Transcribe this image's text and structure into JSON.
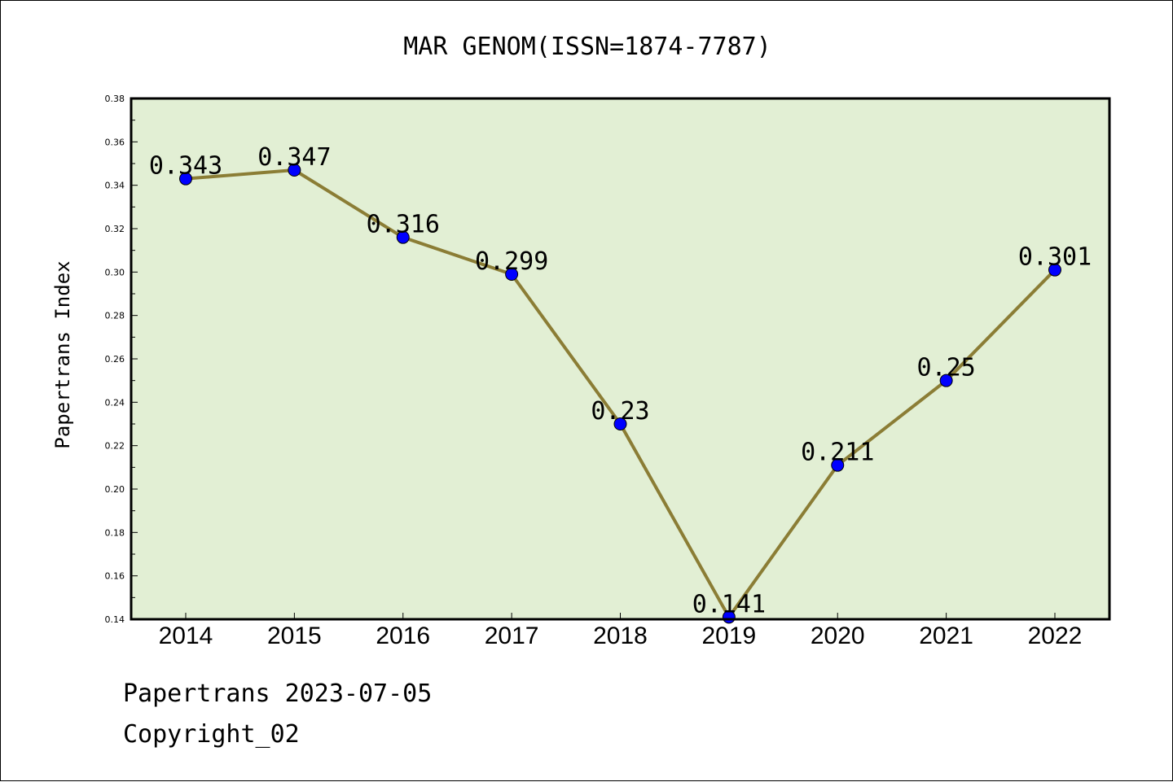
{
  "chart_data": {
    "type": "line",
    "title": "MAR GENOM(ISSN=1874-7787)",
    "xlabel": "",
    "ylabel": "Papertrans Index",
    "categories": [
      "2014",
      "2015",
      "2016",
      "2017",
      "2018",
      "2019",
      "2020",
      "2021",
      "2022"
    ],
    "series": [
      {
        "values": [
          0.343,
          0.347,
          0.316,
          0.299,
          0.23,
          0.141,
          0.211,
          0.25,
          0.301
        ],
        "labels": [
          "0.343",
          "0.347",
          "0.316",
          "0.299",
          "0.23",
          "0.141",
          "0.211",
          "0.25",
          "0.301"
        ]
      }
    ],
    "ylim": [
      0.14,
      0.38
    ],
    "yticks": [
      "0.14",
      "0.16",
      "0.18",
      "0.20",
      "0.22",
      "0.24",
      "0.26",
      "0.28",
      "0.30",
      "0.32",
      "0.34",
      "0.36",
      "0.38"
    ],
    "grid": false,
    "legend": "none",
    "colors": {
      "plot_background": "#e2efd4",
      "line": "#8b7d35",
      "marker": "#0000ff"
    }
  },
  "footer": {
    "line1": "Papertrans 2023-07-05",
    "line2": "Copyright_02"
  }
}
